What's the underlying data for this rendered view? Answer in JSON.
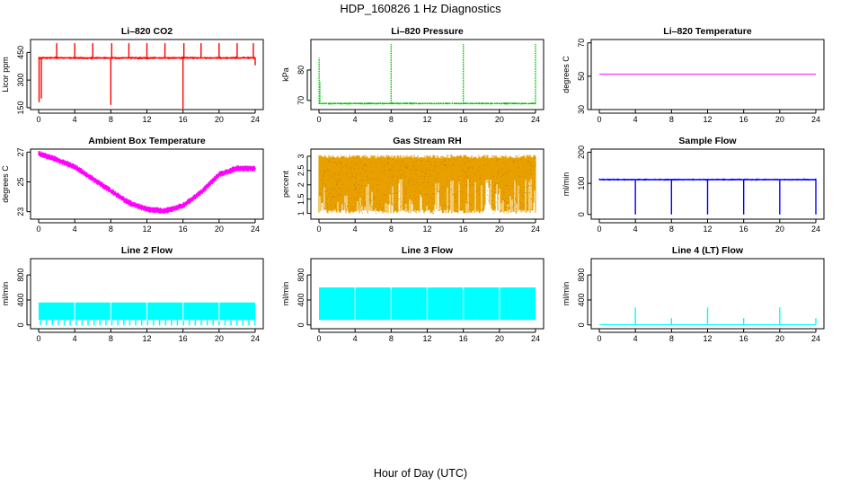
{
  "title": "HDP_160826  1 Hz Diagnostics",
  "xlabel": "Hour of Day (UTC)",
  "chart_data": [
    {
      "type": "line",
      "title": "Li–820 CO2",
      "ylabel": "Licor ppm",
      "color": "#ff0000",
      "xlim": [
        0,
        24
      ],
      "ylim": [
        140,
        520
      ],
      "xticks": [
        0,
        4,
        8,
        12,
        16,
        20,
        24
      ],
      "yticks": [
        150,
        300,
        450
      ],
      "baseline": 420,
      "noise": 8,
      "events": [
        {
          "x": 0.05,
          "y": 180
        },
        {
          "x": 0.3,
          "y": 200
        },
        {
          "x": 2,
          "y": 500
        },
        {
          "x": 4,
          "y": 500
        },
        {
          "x": 6,
          "y": 500
        },
        {
          "x": 8,
          "y": 165
        },
        {
          "x": 8.1,
          "y": 500
        },
        {
          "x": 10,
          "y": 500
        },
        {
          "x": 12,
          "y": 500
        },
        {
          "x": 14,
          "y": 500
        },
        {
          "x": 16,
          "y": 140
        },
        {
          "x": 16.1,
          "y": 500
        },
        {
          "x": 18,
          "y": 500
        },
        {
          "x": 20,
          "y": 500
        },
        {
          "x": 22,
          "y": 500
        },
        {
          "x": 23.8,
          "y": 500
        },
        {
          "x": 24,
          "y": 380
        }
      ]
    },
    {
      "type": "line",
      "title": "Li–820 Pressure",
      "ylabel": "kPa",
      "color": "#00c000",
      "style": "dotted",
      "xlim": [
        0,
        24
      ],
      "ylim": [
        67,
        90
      ],
      "xticks": [
        0,
        4,
        8,
        12,
        16,
        20,
        24
      ],
      "yticks": [
        70,
        80
      ],
      "baseline": 69,
      "noise": 0.15,
      "events": [
        {
          "x": 0.02,
          "y": 84
        },
        {
          "x": 0.1,
          "y": 76
        },
        {
          "x": 8,
          "y": 88.5
        },
        {
          "x": 16,
          "y": 88.5
        },
        {
          "x": 24,
          "y": 88.5
        }
      ]
    },
    {
      "type": "line",
      "title": "Li–820 Temperature",
      "ylabel": "degrees C",
      "color": "#ff00ff",
      "xlim": [
        0,
        24
      ],
      "ylim": [
        30,
        72
      ],
      "xticks": [
        0,
        4,
        8,
        12,
        16,
        20,
        24
      ],
      "yticks": [
        30,
        50,
        70
      ],
      "baseline": 51.2,
      "noise": 0,
      "events": []
    },
    {
      "type": "line",
      "title": "Ambient Box Temperature",
      "ylabel": "degrees C",
      "color": "#ff00ff",
      "xlim": [
        0,
        24
      ],
      "ylim": [
        22.5,
        27.2
      ],
      "xticks": [
        0,
        4,
        8,
        12,
        16,
        20,
        24
      ],
      "yticks": [
        23,
        25,
        27
      ],
      "noise": 0.18,
      "curve": [
        {
          "x": 0,
          "y": 26.9
        },
        {
          "x": 2,
          "y": 26.5
        },
        {
          "x": 4,
          "y": 26.0
        },
        {
          "x": 6,
          "y": 25.2
        },
        {
          "x": 8,
          "y": 24.4
        },
        {
          "x": 10,
          "y": 23.6
        },
        {
          "x": 12,
          "y": 23.15
        },
        {
          "x": 14,
          "y": 23.05
        },
        {
          "x": 16,
          "y": 23.4
        },
        {
          "x": 18,
          "y": 24.3
        },
        {
          "x": 20,
          "y": 25.5
        },
        {
          "x": 22,
          "y": 25.9
        },
        {
          "x": 24,
          "y": 25.9
        }
      ]
    },
    {
      "type": "area",
      "title": "Gas Stream RH",
      "ylabel": "percent",
      "color": "#e8a000",
      "xlim": [
        0,
        24
      ],
      "ylim": [
        0.8,
        3.25
      ],
      "xticks": [
        0,
        4,
        8,
        12,
        16,
        20,
        24
      ],
      "yticks": [
        1.0,
        1.5,
        2.0,
        2.5,
        3.0
      ],
      "band": [
        1.0,
        3.05
      ]
    },
    {
      "type": "line",
      "title": "Sample Flow",
      "ylabel": "ml/min",
      "color": "#0000ff",
      "xlim": [
        0,
        24
      ],
      "ylim": [
        -15,
        210
      ],
      "xticks": [
        0,
        4,
        8,
        12,
        16,
        20,
        24
      ],
      "yticks": [
        0,
        100,
        200
      ],
      "baseline": 112,
      "noise": 3,
      "events": [
        {
          "x": 4,
          "y": 0
        },
        {
          "x": 8,
          "y": 0
        },
        {
          "x": 12,
          "y": 0
        },
        {
          "x": 16,
          "y": 0
        },
        {
          "x": 20,
          "y": 0
        },
        {
          "x": 24,
          "y": 0
        }
      ]
    },
    {
      "type": "area",
      "title": "Line 2 Flow",
      "ylabel": "ml/min",
      "color": "#00ffff",
      "xlim": [
        0,
        24
      ],
      "ylim": [
        -60,
        1060
      ],
      "xticks": [
        0,
        4,
        8,
        12,
        16,
        20,
        24
      ],
      "yticks": [
        0,
        400,
        800
      ],
      "band": [
        80,
        360
      ],
      "dips": 0.66,
      "gaps": [
        4,
        8,
        12,
        16,
        20
      ],
      "dip_depth": 30
    },
    {
      "type": "area",
      "title": "Line 3 Flow",
      "ylabel": "ml/min",
      "color": "#00ffff",
      "xlim": [
        0,
        24
      ],
      "ylim": [
        -60,
        1060
      ],
      "xticks": [
        0,
        4,
        8,
        12,
        16,
        20,
        24
      ],
      "yticks": [
        0,
        400,
        800
      ],
      "band": [
        80,
        600
      ],
      "gaps": [
        4,
        8,
        12,
        16,
        20
      ]
    },
    {
      "type": "line",
      "title": "Line 4 (LT) Flow",
      "ylabel": "ml/min",
      "color": "#00ffff",
      "xlim": [
        0,
        24
      ],
      "ylim": [
        -60,
        1060
      ],
      "xticks": [
        0,
        4,
        8,
        12,
        16,
        20,
        24
      ],
      "yticks": [
        0,
        400,
        800
      ],
      "baseline": 5,
      "noise": 0,
      "events": [
        {
          "x": 4,
          "y": 280
        },
        {
          "x": 8,
          "y": 110
        },
        {
          "x": 12,
          "y": 280
        },
        {
          "x": 16,
          "y": 110
        },
        {
          "x": 20,
          "y": 280
        },
        {
          "x": 24,
          "y": 110
        }
      ]
    }
  ]
}
